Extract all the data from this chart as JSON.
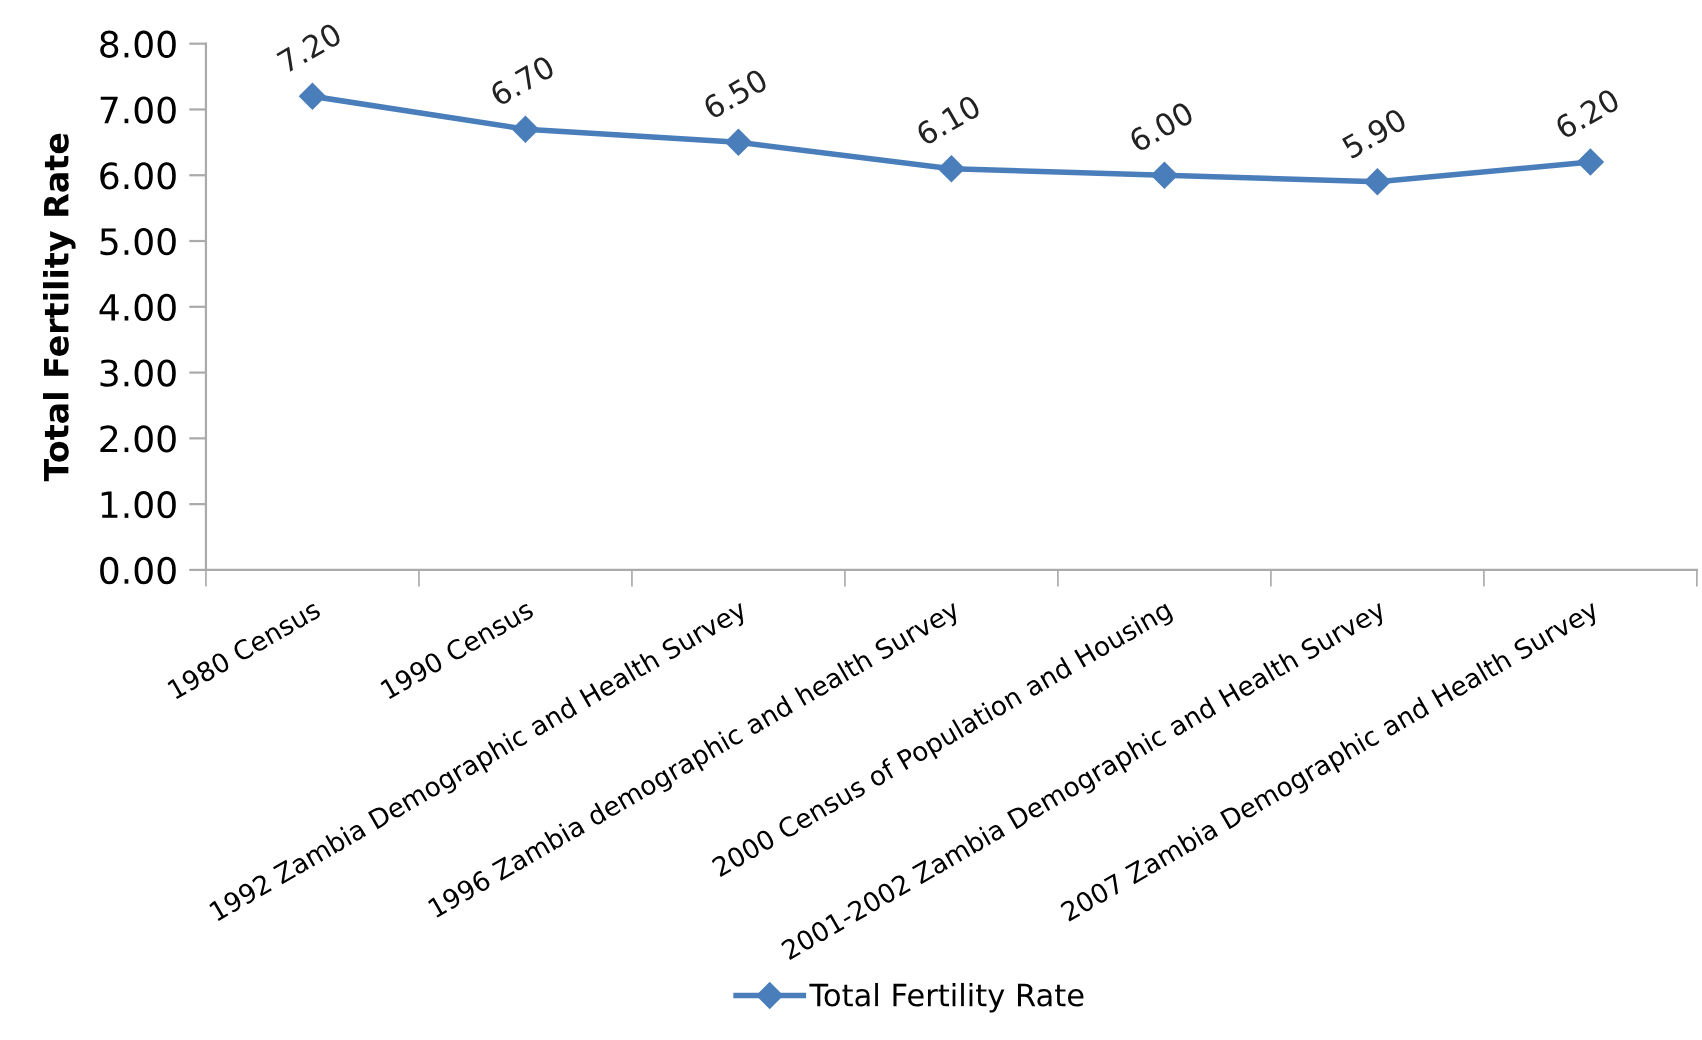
{
  "chart_data": {
    "type": "line",
    "ylabel": "Total Fertility Rate",
    "categories": [
      "1980 Census",
      "1990 Census",
      "1992 Zambia Demographic and Health Survey",
      "1996 Zambia demographic and health Survey",
      "2000 Census of Population and Housing",
      "2001-2002 Zambia Demographic and Health Survey",
      "2007 Zambia Demographic and Health Survey"
    ],
    "series": [
      {
        "name": "Total Fertility Rate",
        "color": "#4a7ebb",
        "values": [
          7.2,
          6.7,
          6.5,
          6.1,
          6.0,
          5.9,
          6.2
        ],
        "value_labels": [
          "7.20",
          "6.70",
          "6.50",
          "6.10",
          "6.00",
          "5.90",
          "6.20"
        ]
      }
    ],
    "ylim": [
      0,
      8
    ],
    "yticks": [
      {
        "value": 0,
        "label": "0.00"
      },
      {
        "value": 1,
        "label": "1.00"
      },
      {
        "value": 2,
        "label": "2.00"
      },
      {
        "value": 3,
        "label": "3.00"
      },
      {
        "value": 4,
        "label": "4.00"
      },
      {
        "value": 5,
        "label": "5.00"
      },
      {
        "value": 6,
        "label": "6.00"
      },
      {
        "value": 7,
        "label": "7.00"
      },
      {
        "value": 8,
        "label": "8.00"
      }
    ],
    "grid": false,
    "legend": "bottom",
    "marker": "diamond",
    "line_style": "solid"
  }
}
